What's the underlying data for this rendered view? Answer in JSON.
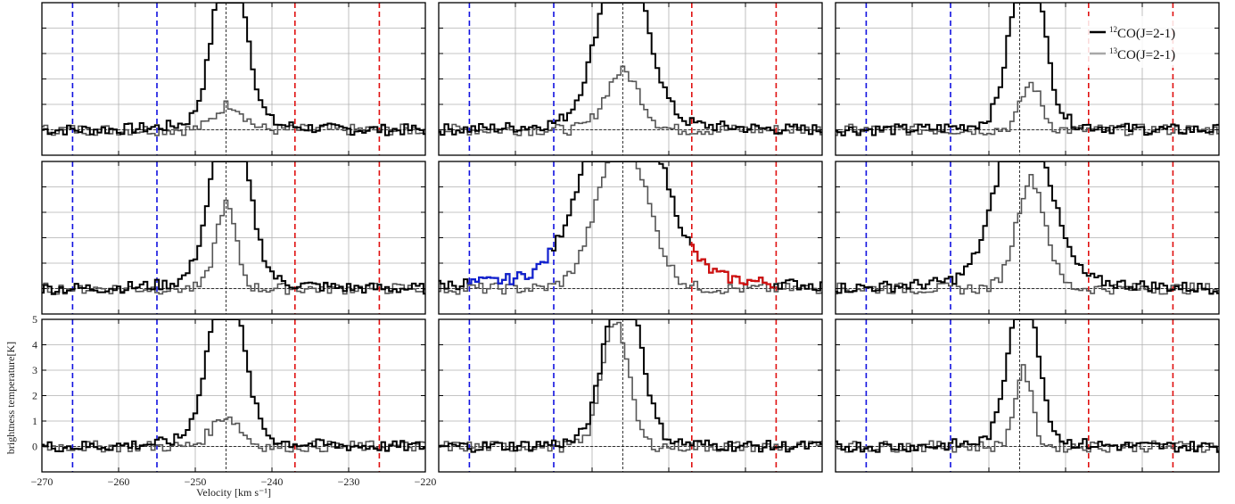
{
  "figure": {
    "ylabel": "brightness temperature[K]",
    "xlabel": "Velocity [km s⁻¹]"
  },
  "legend": {
    "placement": "top-right",
    "entries": [
      {
        "iso": "12",
        "text": "CO(J=2-1)",
        "color": "#000000"
      },
      {
        "iso": "13",
        "text": "CO(J=2-1)",
        "color": "#a8a8a8"
      }
    ]
  },
  "colors": {
    "co12": "#000000",
    "co13": "#555555",
    "blue_line": "#1010e0",
    "red_line": "#e01010",
    "blue_wing": "#1020d0",
    "red_wing": "#d01010",
    "grid": "#b0b0b0"
  },
  "chart_data": {
    "type": "line",
    "layout": "3x3 grid of spectra panels",
    "xlim": [
      -270,
      -220
    ],
    "ylim": [
      -1,
      5
    ],
    "grid": true,
    "x_ticks": [
      -270,
      -260,
      -250,
      -240,
      -230,
      -220
    ],
    "x_tick_labels": [
      "−270",
      "−260",
      "−250",
      "−240",
      "−230",
      "−220"
    ],
    "y_ticks": [
      0,
      1,
      2,
      3,
      4,
      5
    ],
    "y_tick_labels": [
      "0",
      "1",
      "2",
      "3",
      "4",
      "5"
    ],
    "systemic_velocity": -246,
    "blue_lines": [
      -266,
      -255
    ],
    "red_lines": [
      -237,
      -226
    ],
    "channel_width": 0.5,
    "panels": [
      {
        "co12": {
          "amp": 7.0,
          "center": -245.5,
          "sigma": 2.0,
          "wing": 0.9
        },
        "co13": {
          "amp": 1.0,
          "center": -245.5,
          "sigma": 1.8
        }
      },
      {
        "co12": {
          "amp": 7.0,
          "center": -246,
          "sigma": 3.0,
          "wing": 0.9
        },
        "co13": {
          "amp": 2.3,
          "center": -246,
          "sigma": 2.2
        }
      },
      {
        "co12": {
          "amp": 7.0,
          "center": -245,
          "sigma": 2.0,
          "wing": 0.9
        },
        "co13": {
          "amp": 1.8,
          "center": -244.5,
          "sigma": 1.3
        }
      },
      {
        "co12": {
          "amp": 7.0,
          "center": -245.5,
          "sigma": 2.3,
          "wing": 0.9
        },
        "co13": {
          "amp": 3.3,
          "center": -246,
          "sigma": 1.3
        }
      },
      {
        "co12": {
          "amp": 8.5,
          "center": -246,
          "sigma": 4.5,
          "wing": 1.6
        },
        "co13": {
          "amp": 6.0,
          "center": -246,
          "sigma": 3.2
        },
        "wings": true
      },
      {
        "co12": {
          "amp": 7.0,
          "center": -245.5,
          "sigma": 3.2,
          "wing": 1.1
        },
        "co13": {
          "amp": 4.3,
          "center": -244.5,
          "sigma": 1.9
        }
      },
      {
        "co12": {
          "amp": 6.5,
          "center": -246,
          "sigma": 2.2,
          "wing": 0.8
        },
        "co13": {
          "amp": 1.2,
          "center": -246,
          "sigma": 1.8
        }
      },
      {
        "co12": {
          "amp": 7.0,
          "center": -246,
          "sigma": 2.2,
          "wing": 0.7
        },
        "co13": {
          "amp": 5.0,
          "center": -247,
          "sigma": 1.7
        }
      },
      {
        "co12": {
          "amp": 6.5,
          "center": -245.5,
          "sigma": 1.8,
          "wing": 0.7
        },
        "co13": {
          "amp": 3.0,
          "center": -245.5,
          "sigma": 1.1
        }
      }
    ]
  }
}
